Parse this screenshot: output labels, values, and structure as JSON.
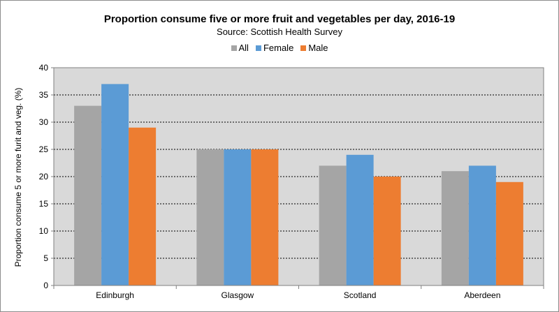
{
  "chart_data": {
    "type": "bar",
    "title": "Proportion consume five or more fruit and vegetables per day, 2016-19",
    "subtitle": "Source: Scottish Health Survey",
    "xlabel": "",
    "ylabel": "Proportion consume  5 or more furit and veg. (%)",
    "ylim": [
      0,
      40
    ],
    "yticks": [
      0,
      5,
      10,
      15,
      20,
      25,
      30,
      35,
      40
    ],
    "grid": true,
    "legend_position": "top-center",
    "categories": [
      "Edinburgh",
      "Glasgow",
      "Scotland",
      "Aberdeen"
    ],
    "series": [
      {
        "name": "All",
        "color": "#a5a5a5",
        "values": [
          33,
          25,
          22,
          21
        ]
      },
      {
        "name": "Female",
        "color": "#5b9bd5",
        "values": [
          37,
          25,
          24,
          22
        ]
      },
      {
        "name": "Male",
        "color": "#ed7d31",
        "values": [
          29,
          25,
          20,
          19
        ]
      }
    ]
  }
}
